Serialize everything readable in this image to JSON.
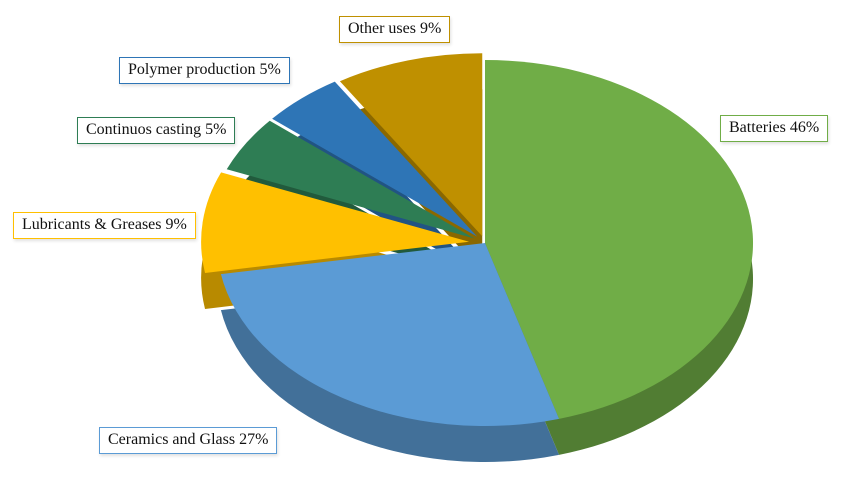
{
  "chart_data": {
    "type": "pie",
    "title": "",
    "effect": "3d",
    "start_angle_deg": -90,
    "direction": "clockwise",
    "legend_position": "none",
    "slices": [
      {
        "name": "Batteries",
        "value": 46,
        "display": "Batteries 46%",
        "color": "#70AD47"
      },
      {
        "name": "Ceramics and Glass",
        "value": 27,
        "display": "Ceramics and Glass 27%",
        "color": "#5B9BD5"
      },
      {
        "name": "Lubricants & Greases",
        "value": 9,
        "display": "Lubricants & Greases 9%",
        "color": "#FFC000"
      },
      {
        "name": "Continuos casting",
        "value": 5,
        "display": "Continuos casting 5%",
        "color": "#2E7D54"
      },
      {
        "name": "Polymer production",
        "value": 5,
        "display": "Polymer production 5%",
        "color": "#2E75B6"
      },
      {
        "name": "Other uses",
        "value": 9,
        "display": "Other uses 9%",
        "color": "#BF9000"
      }
    ]
  }
}
